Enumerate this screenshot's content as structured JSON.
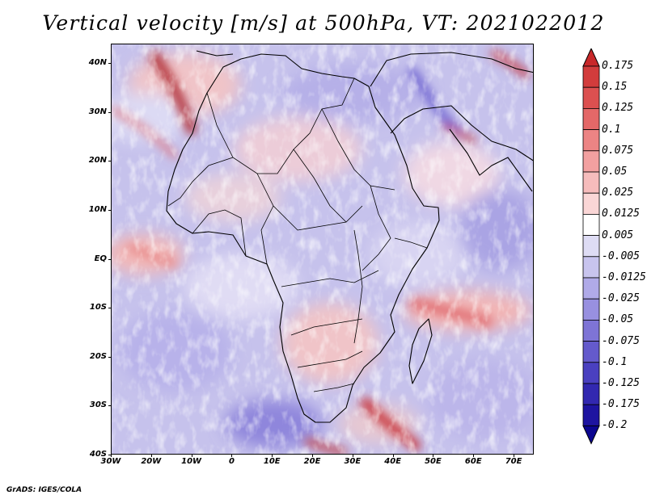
{
  "title": "Vertical velocity [m/s] at 500hPa, VT: 2021022012",
  "footer": "GrADS: IGES/COLA",
  "map": {
    "lat_ticks": [
      "40N",
      "30N",
      "20N",
      "10N",
      "EQ",
      "10S",
      "20S",
      "30S",
      "40S"
    ],
    "lon_ticks": [
      "30W",
      "20W",
      "10W",
      "0",
      "10E",
      "20E",
      "30E",
      "40E",
      "50E",
      "60E",
      "70E"
    ],
    "lat_range": [
      -40,
      44
    ],
    "lon_range": [
      -30,
      75
    ]
  },
  "colorbar": {
    "levels": [
      "0.175",
      "0.15",
      "0.125",
      "0.1",
      "0.075",
      "0.05",
      "0.025",
      "0.0125",
      "0.005",
      "-0.005",
      "-0.0125",
      "-0.025",
      "-0.05",
      "-0.075",
      "-0.1",
      "-0.125",
      "-0.175",
      "-0.2"
    ],
    "colors": [
      "#c8282a",
      "#d23c3c",
      "#dc5050",
      "#e46868",
      "#ec8484",
      "#f2a0a0",
      "#f6bcbc",
      "#fad6d6",
      "#ffffff",
      "#dedcf4",
      "#c8c4ee",
      "#b0aae8",
      "#9890e0",
      "#7e74d6",
      "#645acc",
      "#4a40c0",
      "#3228b0",
      "#1e14a0",
      "#0c0690"
    ]
  }
}
